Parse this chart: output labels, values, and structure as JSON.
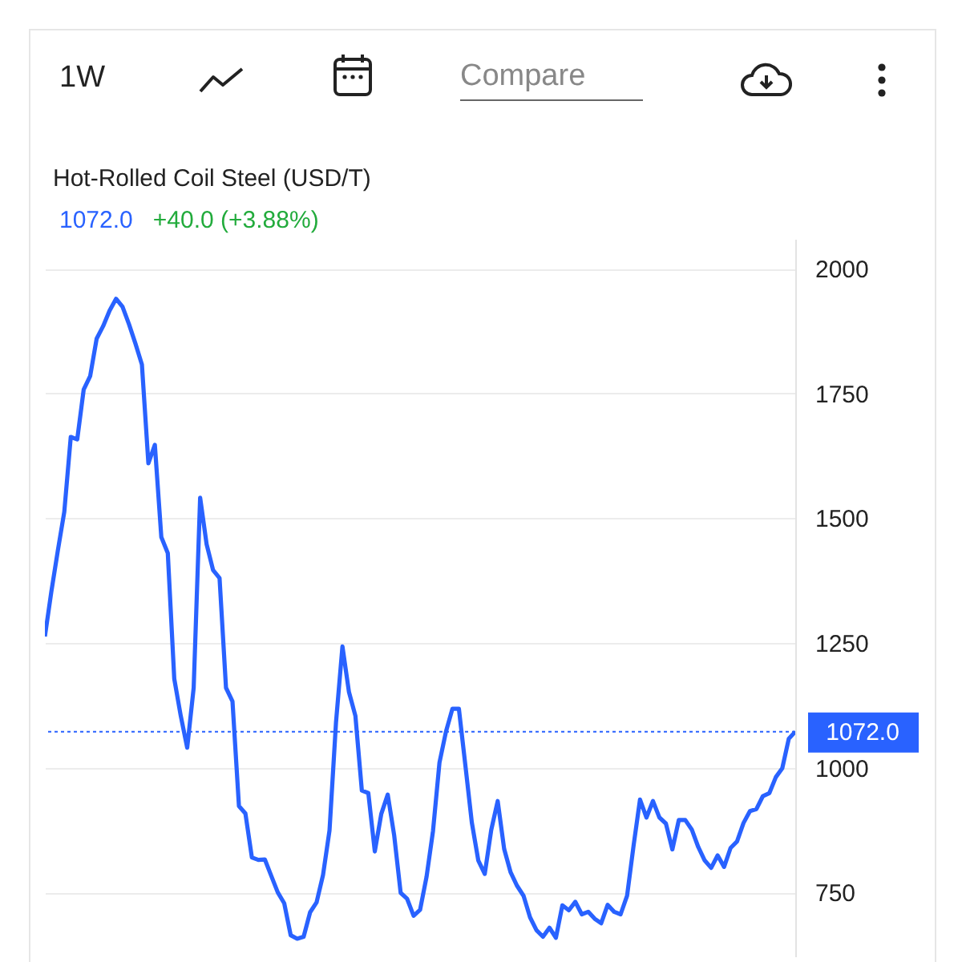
{
  "chart_data": {
    "type": "line",
    "title": "Hot-Rolled Coil Steel (USD/T)",
    "subtitle": "1072.0",
    "annotations": [
      "1W",
      "Compare",
      "+40.0 (+3.88%)"
    ],
    "categories": [
      null,
      null,
      null,
      null,
      null,
      null,
      null,
      null,
      null,
      null,
      null,
      null,
      null,
      null,
      null,
      null,
      null,
      null,
      null,
      null,
      null,
      null,
      null,
      null,
      null,
      null,
      null,
      null,
      null,
      null,
      null,
      null,
      null,
      null,
      null,
      null,
      null,
      null,
      null,
      null,
      null,
      null,
      null,
      null,
      null,
      null,
      null,
      null,
      null,
      null,
      null,
      null,
      null,
      null,
      null,
      null,
      null,
      null,
      null,
      null,
      null,
      null,
      null,
      null,
      null,
      null,
      null,
      null,
      null,
      null,
      null,
      null,
      null,
      null,
      null,
      null,
      null,
      null,
      null,
      null,
      null,
      null,
      null,
      null,
      null,
      null,
      null,
      null,
      null,
      null,
      null,
      null,
      null,
      null,
      null,
      null,
      null,
      null,
      null,
      null,
      null,
      null,
      null,
      null,
      null,
      null,
      null,
      null,
      null,
      null,
      null,
      null,
      null,
      null,
      null,
      null,
      null
    ],
    "series": [
      {
        "color": "#2962ff",
        "values": [
          1263,
          1353,
          1435,
          1513,
          1663,
          1658,
          1758,
          1785,
          1860,
          1885,
          1916,
          1940,
          1924,
          1889,
          1850,
          1808,
          1610,
          1647,
          1462,
          1430,
          1178,
          1104,
          1040,
          1160,
          1541,
          1448,
          1396,
          1380,
          1160,
          1133,
          923,
          908,
          820,
          815,
          816,
          783,
          750,
          728,
          664,
          657,
          661,
          710,
          730,
          785,
          874,
          1090,
          1243,
          1152,
          1104,
          954,
          949,
          832,
          907,
          946,
          864,
          749,
          737,
          703,
          715,
          781,
          873,
          1010,
          1072,
          1118,
          1118,
          1005,
          890,
          814,
          787,
          875,
          933,
          837,
          790,
          763,
          743,
          700,
          674,
          661,
          679,
          659,
          724,
          714,
          731,
          706,
          711,
          697,
          688,
          725,
          711,
          706,
          743,
          843,
          936,
          900,
          933,
          900,
          888,
          836,
          895,
          895,
          876,
          841,
          814,
          799,
          824,
          801,
          839,
          852,
          889,
          913,
          917,
          943,
          949,
          981,
          999,
          1058,
          1072
        ]
      }
    ],
    "ylim": [
      620,
      2060
    ],
    "yticks": [
      750,
      1000,
      1250,
      1500,
      1750,
      2000
    ],
    "grid": "y",
    "ref_lines": [
      {
        "axis": "y",
        "value": 1072,
        "label": "1072.0",
        "color": "#2962ff",
        "line_style": "dotted"
      }
    ]
  }
}
